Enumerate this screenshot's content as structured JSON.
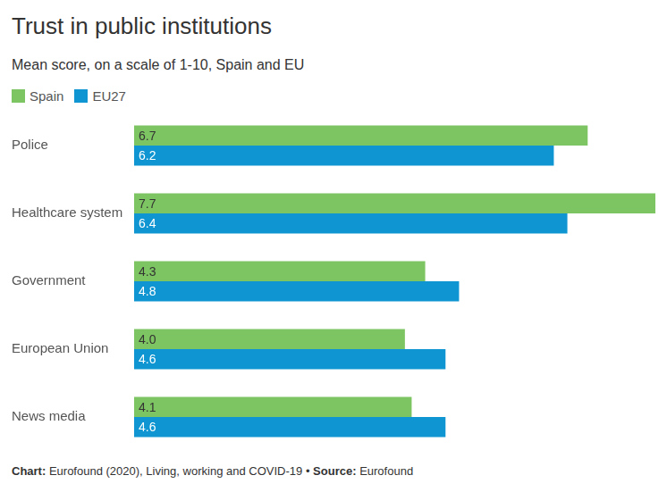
{
  "chart_data": {
    "type": "bar",
    "orientation": "horizontal",
    "title": "Trust in public institutions",
    "subtitle": "Mean score, on a scale of 1-10, Spain and EU",
    "source": "Chart: Eurofound (2020), Living, working and COVID-19 • Source: Eurofound",
    "categories": [
      "Police",
      "Healthcare system",
      "Government",
      "European Union",
      "News media"
    ],
    "series": [
      {
        "name": "Spain",
        "color": "#7dc462",
        "values": [
          6.7,
          7.7,
          4.3,
          4.0,
          4.1
        ],
        "value_labels": [
          "6.7",
          "7.7",
          "4.3",
          "4.0",
          "4.1"
        ]
      },
      {
        "name": "EU27",
        "color": "#0f96d2",
        "values": [
          6.2,
          6.4,
          4.8,
          4.6,
          4.6
        ],
        "value_labels": [
          "6.2",
          "6.4",
          "4.8",
          "4.6",
          "4.6"
        ]
      }
    ],
    "xlim": [
      0,
      7.7
    ],
    "grid": false,
    "legend": "top-left",
    "data_labels": true,
    "tick_labels": "y"
  }
}
